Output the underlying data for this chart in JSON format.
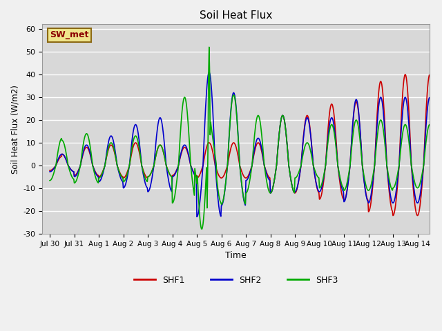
{
  "title": "Soil Heat Flux",
  "ylabel": "Soil Heat Flux (W/m2)",
  "xlabel": "Time",
  "ylim": [
    -30,
    62
  ],
  "xlim_days": [
    -0.3,
    15.5
  ],
  "legend_label": "SW_met",
  "series_labels": [
    "SHF1",
    "SHF2",
    "SHF3"
  ],
  "series_colors": [
    "#cc0000",
    "#0000cc",
    "#00aa00"
  ],
  "line_width": 1.2,
  "xtick_labels": [
    "Jul 30",
    "Jul 31",
    "Aug 1",
    "Aug 2",
    "Aug 3",
    "Aug 4",
    "Aug 5",
    "Aug 6",
    "Aug 7",
    "Aug 8",
    "Aug 9",
    "Aug 10",
    "Aug 11",
    "Aug 12",
    "Aug 13",
    "Aug 14"
  ],
  "xtick_positions": [
    0,
    1,
    2,
    3,
    4,
    5,
    6,
    7,
    8,
    9,
    10,
    11,
    12,
    13,
    14,
    15
  ],
  "ytick_positions": [
    -30,
    -20,
    -10,
    0,
    10,
    20,
    30,
    40,
    50,
    60
  ],
  "legend_box_bg": "#f0e68c",
  "legend_box_edge": "#8b6914",
  "fig_bg": "#f0f0f0",
  "plot_bg": "#d8d8d8",
  "grid_color": "#ffffff"
}
